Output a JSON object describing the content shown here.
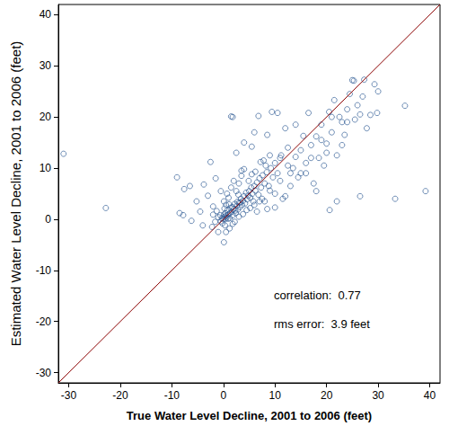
{
  "chart_data": {
    "type": "scatter",
    "x_label": "True Water Level Decline, 2001 to 2006 (feet)",
    "y_label": "Estimated Water Level Decline, 2001 to 2006 (feet)",
    "annotations": [
      "correlation:  0.77",
      "rms error:  3.9 feet"
    ],
    "xlim": [
      -32,
      42
    ],
    "ylim": [
      -32,
      42
    ],
    "xticks": [
      -30,
      -20,
      -10,
      0,
      10,
      20,
      30,
      40
    ],
    "yticks": [
      -30,
      -20,
      -10,
      0,
      10,
      20,
      30,
      40
    ],
    "grid": false,
    "series": [
      {
        "type": "scatter",
        "marker": "circle-open",
        "color": "#1f4e8c",
        "x": [
          -31,
          -22.8,
          39.2,
          35.2,
          33.3,
          26.5,
          20.6,
          -9,
          -7.6,
          -8.5,
          -7.8,
          -6.5,
          -6.2,
          -5.2,
          -4.5,
          -4,
          -3.8,
          -3,
          -2.5,
          -2.2,
          -2,
          -1.5,
          -1,
          -0.5,
          1.5,
          1.8,
          2.5,
          3.5,
          4,
          5.5,
          6,
          6.8,
          7.2,
          8.2,
          8.5,
          9.4,
          10.5,
          11.2,
          12,
          12.5,
          13,
          13.5,
          14,
          14.5,
          15,
          15.5,
          16,
          16.5,
          17,
          17.5,
          18,
          18.5,
          19,
          19.5,
          20,
          20.5,
          21,
          21.5,
          22,
          22.5,
          23,
          23.5,
          24,
          24.5,
          25,
          25.3,
          25.5,
          26,
          26.5,
          27,
          27.3,
          27.8,
          28.5,
          29.3,
          29.8,
          30,
          22,
          18,
          16,
          12,
          10,
          9,
          8,
          11,
          13,
          14,
          15,
          17,
          19,
          20,
          21,
          23,
          24,
          0,
          0.2,
          0.4,
          0.6,
          0.8,
          1,
          1.2,
          1.4,
          1.6,
          1.8,
          2,
          2.2,
          2.4,
          2.6,
          2.8,
          3,
          3.2,
          3.4,
          3.6,
          3.8,
          4,
          4.2,
          4.4,
          4.6,
          4.8,
          5,
          5.2,
          5.4,
          5.6,
          5.8,
          6,
          6.2,
          6.5,
          6.8,
          7,
          7.3,
          7.6,
          8,
          8.4,
          8.8,
          9.2,
          9.6,
          10,
          10.5,
          11,
          -0.3,
          -0.6,
          -1,
          -1.3,
          -1.6,
          -2,
          -0.2,
          0.3,
          0.5,
          0.1,
          1,
          0.7,
          1.5,
          2,
          2.5,
          3,
          3.5,
          4,
          2.2,
          3,
          3.8,
          4.5,
          5.2,
          6,
          6.5,
          7,
          7.5,
          0.1,
          0.5,
          1.2,
          1.8,
          0.9,
          0.1,
          -0.5,
          0.2,
          1.1,
          2.9,
          4.9,
          5.5,
          6.2,
          7.8,
          9,
          8.5,
          10,
          11.5,
          12.5,
          0.4,
          0.6,
          1.3,
          1.7,
          2.3,
          2.7,
          3.3
        ],
        "values": [
          12.8,
          2.2,
          5.5,
          22.2,
          4,
          4.5,
          1.8,
          8.2,
          5.9,
          1.2,
          0.8,
          6.5,
          -0.3,
          3.5,
          1.5,
          -1.2,
          6.8,
          4.6,
          11.2,
          -1.5,
          2.5,
          8,
          -2.5,
          5.5,
          20.1,
          20,
          13,
          9.5,
          15,
          14.2,
          17,
          20.2,
          11.2,
          10.5,
          16.5,
          21,
          20.8,
          12.5,
          17.8,
          14,
          6.5,
          10,
          18.5,
          8.2,
          13.5,
          16.3,
          11,
          20.8,
          14.5,
          7,
          16.2,
          12,
          18.5,
          10.5,
          14.8,
          21,
          17,
          23.3,
          12.5,
          20,
          19,
          16.5,
          21.5,
          24.5,
          27.2,
          27.1,
          19.5,
          22.3,
          20.5,
          24,
          27.3,
          17.8,
          20.4,
          26.4,
          20.8,
          25,
          3.5,
          5.5,
          9,
          4.5,
          2.3,
          5.6,
          3.5,
          7.5,
          9,
          12.2,
          9,
          12,
          15.5,
          13,
          20,
          14.5,
          19,
          0,
          0.5,
          1.2,
          0.3,
          1.8,
          1,
          0.2,
          2.2,
          1.5,
          0.8,
          2,
          3,
          1.2,
          2.6,
          1.9,
          3.2,
          2.4,
          4,
          2.8,
          3.6,
          4.5,
          3.1,
          5.2,
          3.9,
          4.6,
          5.5,
          4.2,
          6.2,
          5,
          3.5,
          6.5,
          5.6,
          7.2,
          4.8,
          8,
          6.2,
          8.6,
          7,
          9.2,
          6.5,
          10,
          8.2,
          11,
          9,
          12,
          0.2,
          0.8,
          0.4,
          1.6,
          -0.5,
          0.9,
          -0.8,
          -1.2,
          2.8,
          3.5,
          4.2,
          5,
          6.2,
          7.5,
          5.5,
          7,
          8.5,
          9.8,
          -0.5,
          0.5,
          1,
          1.8,
          2.2,
          2.8,
          1.5,
          3.5,
          4,
          -4.5,
          -2.5,
          -1.8,
          -0.9,
          0.1,
          0.9,
          -0.4,
          2.1,
          2.9,
          4.8,
          7.5,
          8.8,
          9.3,
          11.5,
          12.5,
          2,
          5,
          4,
          10.5,
          0.1,
          0.7,
          1.2,
          2.4,
          1.7,
          3.4,
          3.3
        ]
      },
      {
        "type": "line",
        "color": "#8b0000",
        "line_style": "solid",
        "x": [
          -32,
          42
        ],
        "values": [
          -32,
          42
        ]
      }
    ]
  }
}
